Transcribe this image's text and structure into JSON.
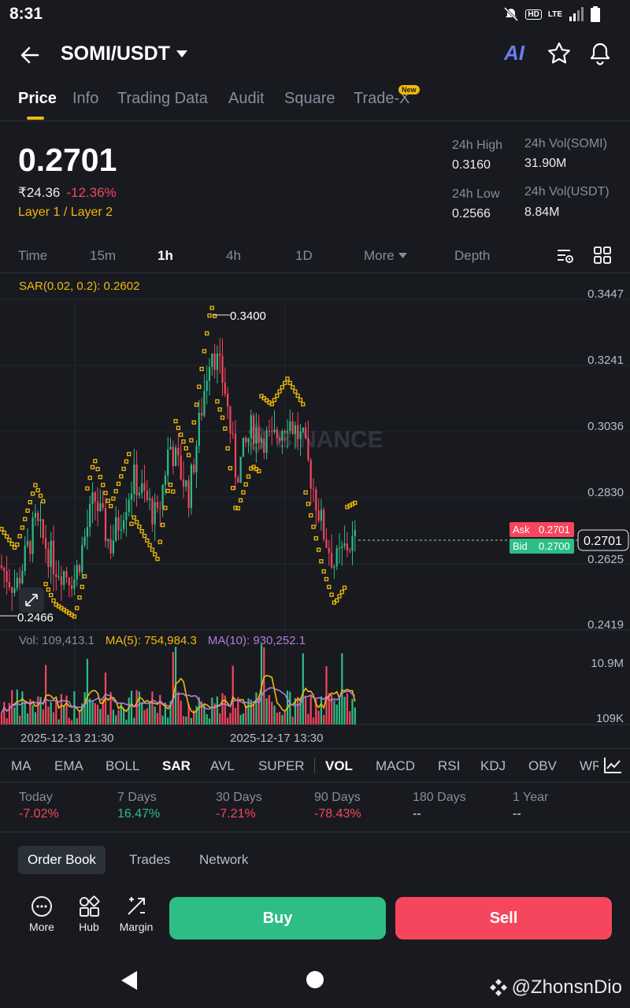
{
  "status_bar": {
    "time": "8:31",
    "icons": [
      "bell-off-icon",
      "hd-icon",
      "lte-icon",
      "signal-icon",
      "battery-icon"
    ],
    "hd": "HD",
    "lte": "LTE"
  },
  "header": {
    "pair": "SOMI/USDT",
    "ai_label": "AI"
  },
  "tabs": [
    {
      "label": "Price",
      "active": true
    },
    {
      "label": "Info"
    },
    {
      "label": "Trading Data"
    },
    {
      "label": "Audit"
    },
    {
      "label": "Square"
    },
    {
      "label": "Trade-X",
      "badge": "New"
    }
  ],
  "price": {
    "last": "0.2701",
    "fiat": "₹24.36",
    "change": "-12.36%",
    "category": "Layer 1 / Layer 2",
    "stats": {
      "high_label": "24h High",
      "high": "0.3160",
      "low_label": "24h Low",
      "low": "0.2566",
      "vol_base_label": "24h Vol(SOMI)",
      "vol_base": "31.90M",
      "vol_quote_label": "24h Vol(USDT)",
      "vol_quote": "8.84M"
    }
  },
  "intervals": [
    {
      "label": "Time"
    },
    {
      "label": "15m"
    },
    {
      "label": "1h",
      "active": true
    },
    {
      "label": "4h"
    },
    {
      "label": "1D"
    },
    {
      "label": "More"
    },
    {
      "label": "Depth"
    }
  ],
  "chart": {
    "sar_legend": "SAR(0.02, 0.2): 0.2602",
    "watermark": "BINANCE",
    "high_marker": "0.3400",
    "low_marker": "0.2466",
    "ask_label": "Ask",
    "ask": "0.2701",
    "bid_label": "Bid",
    "bid": "0.2700",
    "current": "0.2701",
    "y_ticks": [
      "0.3447",
      "0.3241",
      "0.3036",
      "0.2830",
      "0.2625",
      "0.2419"
    ],
    "vol_legend": {
      "vol": "Vol: 109,413.1",
      "ma5": "MA(5): 754,984.3",
      "ma10": "MA(10): 930,252.1"
    },
    "vol_ticks": [
      "10.9M",
      "109K"
    ],
    "x_ticks": [
      "2025-12-13 21:30",
      "2025-12-17 13:30"
    ],
    "colors": {
      "up": "#2ebd85",
      "down": "#f6465d",
      "sar": "#f0b90b",
      "ma5": "#f0b90b",
      "ma10": "#b07fd6"
    }
  },
  "indicators": [
    {
      "label": "MA"
    },
    {
      "label": "EMA"
    },
    {
      "label": "BOLL"
    },
    {
      "label": "SAR",
      "active": true
    },
    {
      "label": "AVL"
    },
    {
      "label": "SUPER"
    },
    {
      "label": "VOL",
      "active": true
    },
    {
      "label": "MACD"
    },
    {
      "label": "RSI"
    },
    {
      "label": "KDJ"
    },
    {
      "label": "OBV"
    },
    {
      "label": "WR"
    }
  ],
  "performance": [
    {
      "label": "Today",
      "value": "-7.02%",
      "tone": "red"
    },
    {
      "label": "7 Days",
      "value": "16.47%",
      "tone": "green"
    },
    {
      "label": "30 Days",
      "value": "-7.21%",
      "tone": "red"
    },
    {
      "label": "90 Days",
      "value": "-78.43%",
      "tone": "red"
    },
    {
      "label": "180 Days",
      "value": "--",
      "tone": "white"
    },
    {
      "label": "1 Year",
      "value": "--",
      "tone": "white"
    }
  ],
  "order_tabs": [
    {
      "label": "Order Book",
      "active": true
    },
    {
      "label": "Trades"
    },
    {
      "label": "Network"
    }
  ],
  "actions": {
    "more": "More",
    "hub": "Hub",
    "margin": "Margin",
    "buy": "Buy",
    "sell": "Sell"
  },
  "watermark_user": "@ZhonsnDio"
}
